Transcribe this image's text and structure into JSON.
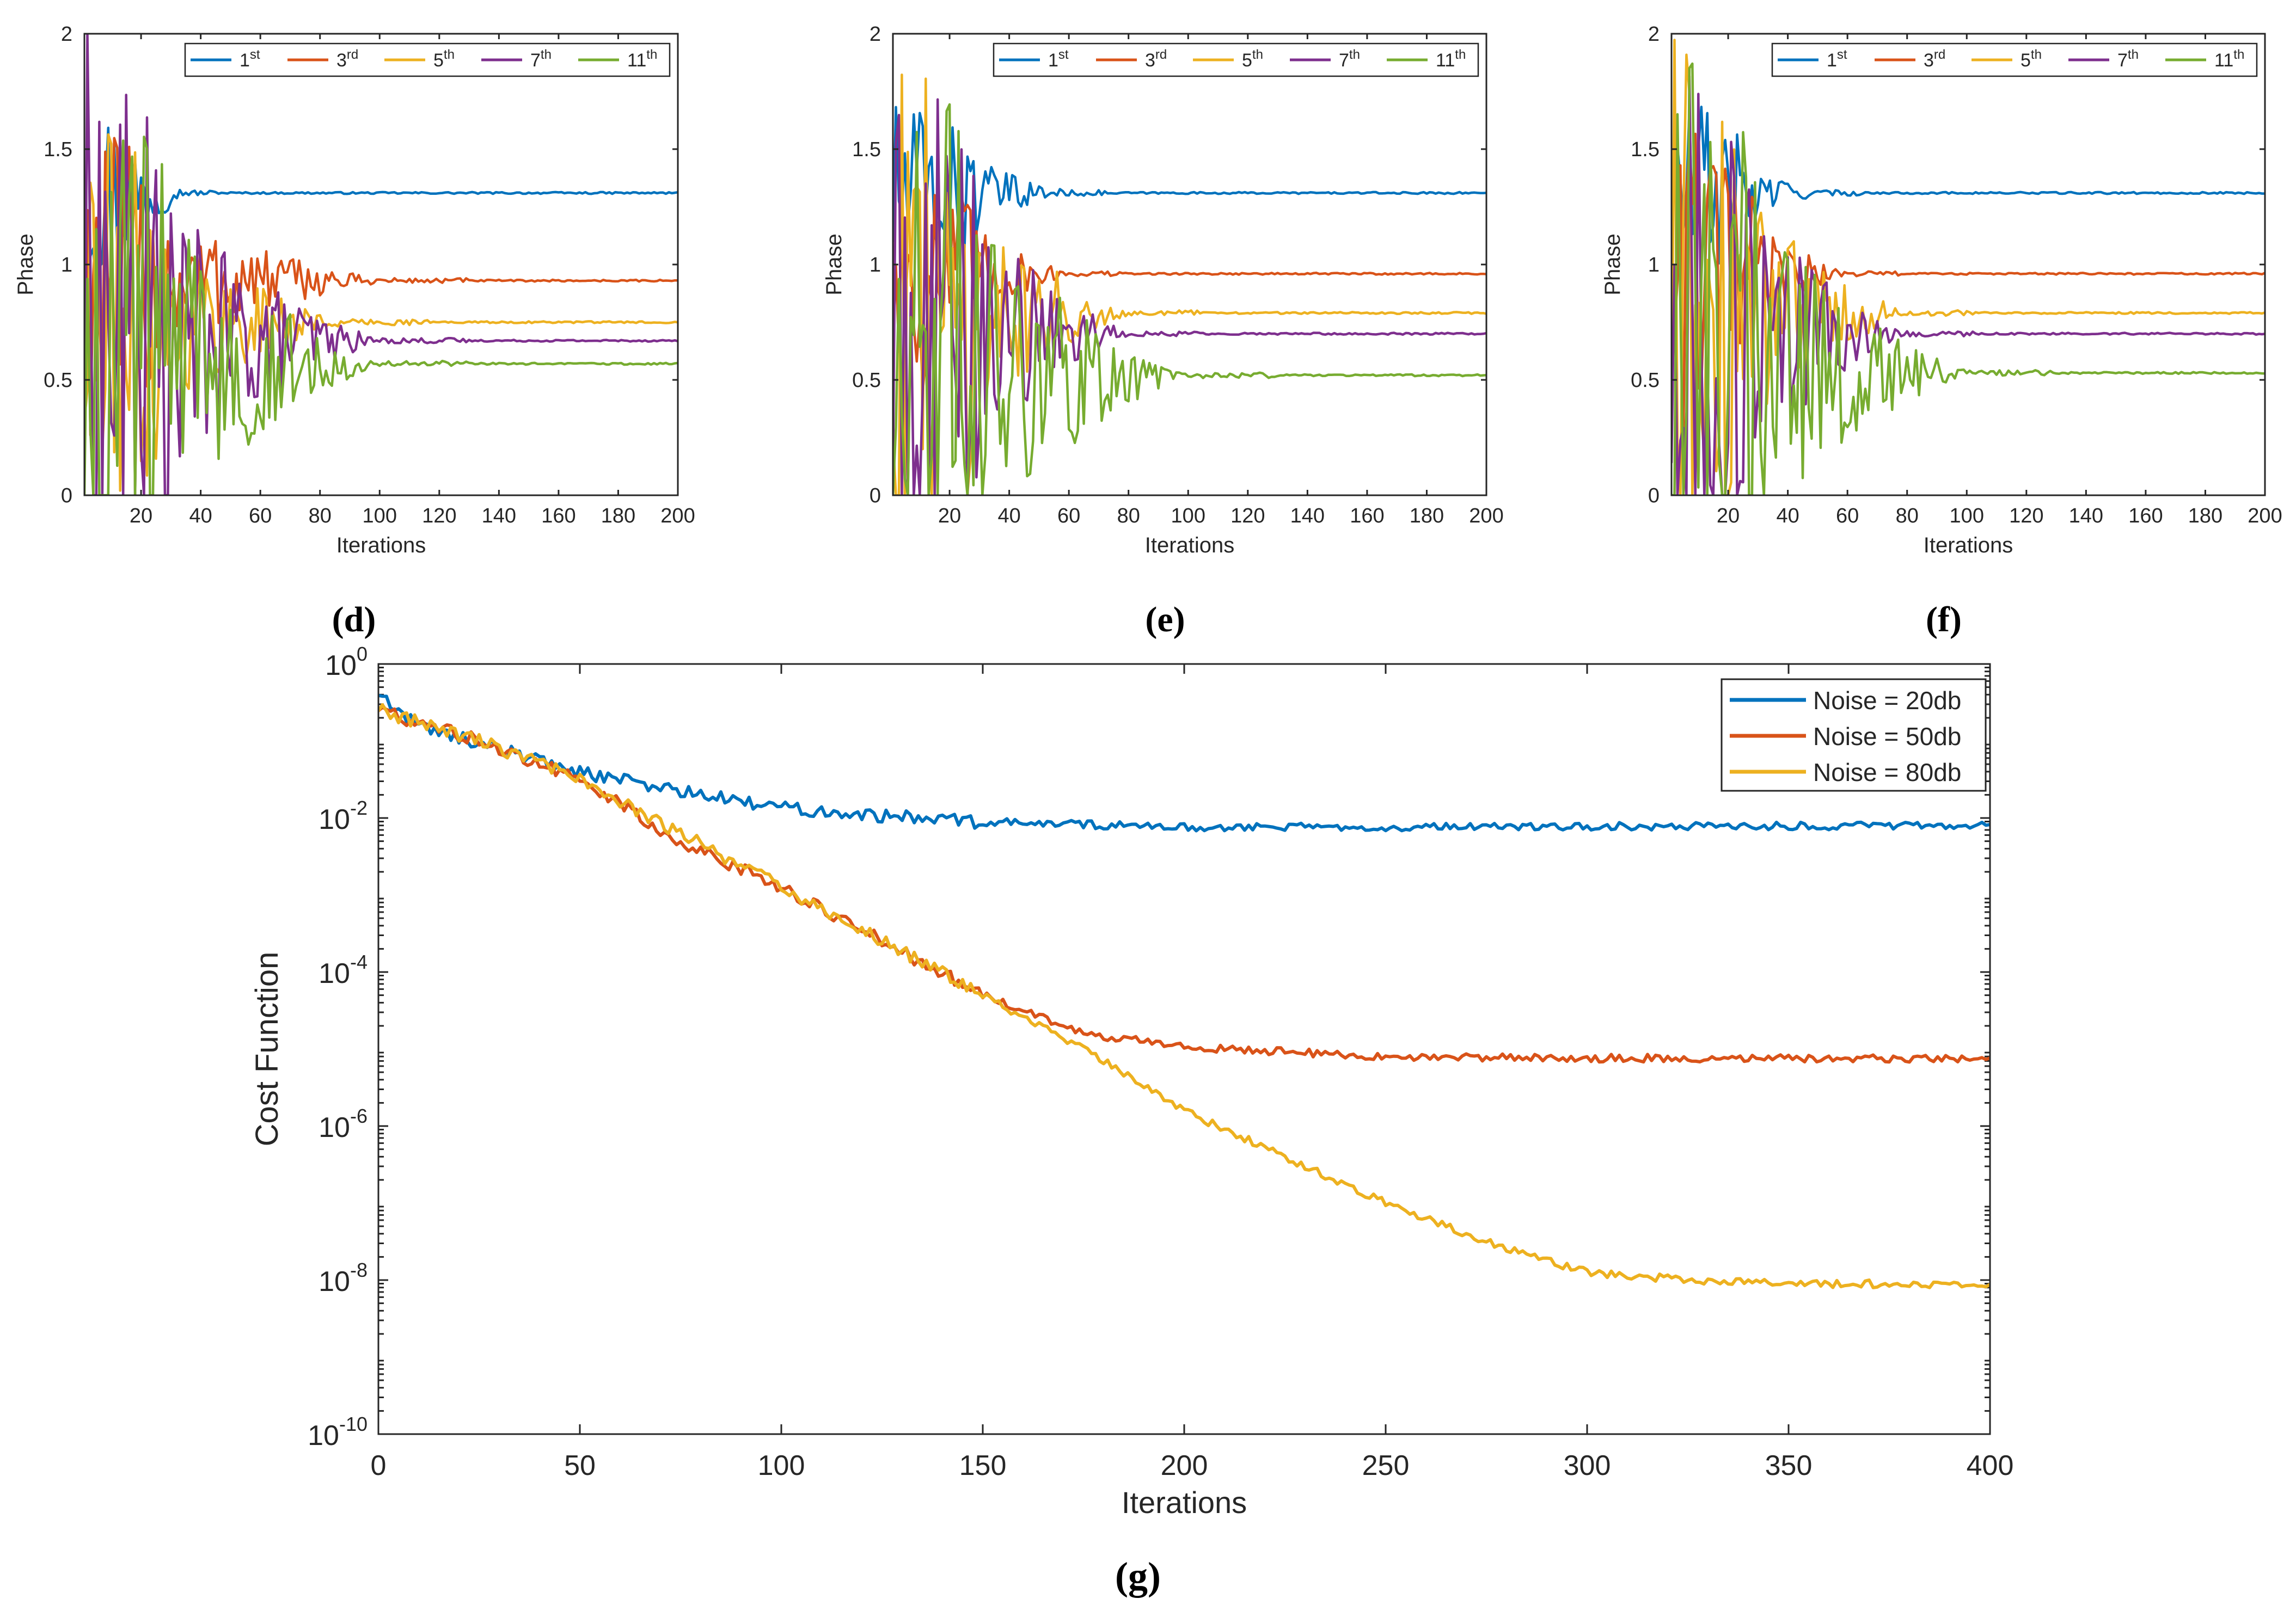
{
  "chart_data": [
    {
      "type": "line",
      "panel_label": "(d)",
      "xlabel": "Iterations",
      "ylabel": "Phase",
      "xlim": [
        1,
        200
      ],
      "ylim": [
        0,
        2
      ],
      "xticks": [
        20,
        40,
        60,
        80,
        100,
        120,
        140,
        160,
        180,
        200
      ],
      "yticks": [
        0,
        0.5,
        1,
        1.5,
        2
      ],
      "legend_location": "top-right",
      "series": [
        {
          "name": "1st",
          "base": "1",
          "sup": "st",
          "color": "#0072BD",
          "final": 1.31,
          "settle": 35,
          "chaos": 0.35
        },
        {
          "name": "3rd",
          "base": "3",
          "sup": "rd",
          "color": "#D95319",
          "final": 0.93,
          "settle": 100,
          "chaos": 0.45
        },
        {
          "name": "5th",
          "base": "5",
          "sup": "th",
          "color": "#EDB120",
          "final": 0.75,
          "settle": 90,
          "chaos": 0.6
        },
        {
          "name": "7th",
          "base": "7",
          "sup": "th",
          "color": "#7E2F8E",
          "final": 0.67,
          "settle": 100,
          "chaos": 0.9
        },
        {
          "name": "11th",
          "base": "11",
          "sup": "th",
          "color": "#77AC30",
          "final": 0.57,
          "settle": 100,
          "chaos": 1.0
        }
      ]
    },
    {
      "type": "line",
      "panel_label": "(e)",
      "xlabel": "Iterations",
      "ylabel": "Phase",
      "xlim": [
        1,
        200
      ],
      "ylim": [
        0,
        2
      ],
      "xticks": [
        20,
        40,
        60,
        80,
        100,
        120,
        140,
        160,
        180,
        200
      ],
      "yticks": [
        0,
        0.5,
        1,
        1.5,
        2
      ],
      "legend_location": "top-right",
      "series": [
        {
          "name": "1st",
          "base": "1",
          "sup": "st",
          "color": "#0072BD",
          "final": 1.31,
          "settle": 60,
          "chaos": 0.3
        },
        {
          "name": "3rd",
          "base": "3",
          "sup": "rd",
          "color": "#D95319",
          "final": 0.96,
          "settle": 60,
          "chaos": 0.45
        },
        {
          "name": "5th",
          "base": "5",
          "sup": "th",
          "color": "#EDB120",
          "final": 0.79,
          "settle": 80,
          "chaos": 0.8
        },
        {
          "name": "7th",
          "base": "7",
          "sup": "th",
          "color": "#7E2F8E",
          "final": 0.7,
          "settle": 80,
          "chaos": 0.9
        },
        {
          "name": "11th",
          "base": "11",
          "sup": "th",
          "color": "#77AC30",
          "final": 0.52,
          "settle": 100,
          "chaos": 1.0
        }
      ]
    },
    {
      "type": "line",
      "panel_label": "(f)",
      "xlabel": "Iterations",
      "ylabel": "Phase",
      "xlim": [
        1,
        200
      ],
      "ylim": [
        0,
        2
      ],
      "xticks": [
        20,
        40,
        60,
        80,
        100,
        120,
        140,
        160,
        180,
        200
      ],
      "yticks": [
        0,
        0.5,
        1,
        1.5,
        2
      ],
      "legend_location": "top-right",
      "series": [
        {
          "name": "1st",
          "base": "1",
          "sup": "st",
          "color": "#0072BD",
          "final": 1.31,
          "settle": 50,
          "chaos": 0.35
        },
        {
          "name": "3rd",
          "base": "3",
          "sup": "rd",
          "color": "#D95319",
          "final": 0.96,
          "settle": 60,
          "chaos": 0.5
        },
        {
          "name": "5th",
          "base": "5",
          "sup": "th",
          "color": "#EDB120",
          "final": 0.79,
          "settle": 80,
          "chaos": 0.8
        },
        {
          "name": "7th",
          "base": "7",
          "sup": "th",
          "color": "#7E2F8E",
          "final": 0.7,
          "settle": 80,
          "chaos": 0.9
        },
        {
          "name": "11th",
          "base": "11",
          "sup": "th",
          "color": "#77AC30",
          "final": 0.53,
          "settle": 100,
          "chaos": 1.0
        }
      ]
    },
    {
      "type": "line",
      "panel_label": "(g)",
      "xlabel": "Iterations",
      "ylabel": "Cost Function",
      "yscale": "log",
      "xlim": [
        0,
        400
      ],
      "ylim_exponent": [
        -10,
        0
      ],
      "xticks": [
        0,
        50,
        100,
        150,
        200,
        250,
        300,
        350,
        400
      ],
      "yticks_exponent": [
        -10,
        -8,
        -6,
        -4,
        -2,
        0
      ],
      "legend_location": "top-right",
      "series": [
        {
          "name": "Noise = 20db",
          "color": "#0072BD",
          "x": [
            0,
            10,
            30,
            50,
            70,
            90,
            120,
            150,
            200,
            400
          ],
          "log10_y": [
            -0.4,
            -0.8,
            -1.1,
            -1.4,
            -1.6,
            -1.8,
            -1.95,
            -2.05,
            -2.12,
            -2.1
          ]
        },
        {
          "name": "Noise = 50db",
          "color": "#D95319",
          "x": [
            0,
            25,
            50,
            75,
            100,
            125,
            150,
            175,
            200,
            250,
            300,
            400
          ],
          "log10_y": [
            -0.6,
            -1.0,
            -1.5,
            -2.3,
            -2.9,
            -3.6,
            -4.3,
            -4.8,
            -4.97,
            -5.1,
            -5.12,
            -5.12
          ]
        },
        {
          "name": "Noise = 80db",
          "color": "#EDB120",
          "x": [
            0,
            25,
            50,
            75,
            100,
            125,
            150,
            175,
            200,
            225,
            250,
            275,
            300,
            325,
            350,
            400
          ],
          "log10_y": [
            -0.6,
            -1.0,
            -1.5,
            -2.2,
            -2.9,
            -3.6,
            -4.3,
            -5.0,
            -5.8,
            -6.4,
            -7.0,
            -7.5,
            -7.9,
            -8.0,
            -8.05,
            -8.05
          ]
        }
      ]
    }
  ]
}
